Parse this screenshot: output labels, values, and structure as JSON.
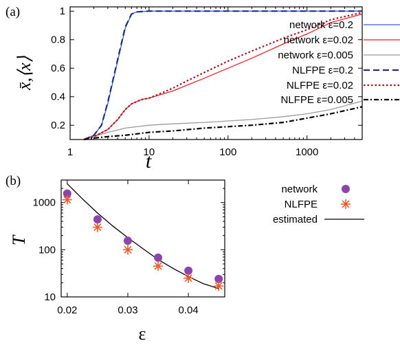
{
  "chart_data": [
    {
      "panel_label": "(a)",
      "type": "line",
      "xlabel": "t",
      "ylabel": "x̄,⟨x⟩",
      "x_scale": "log",
      "xlim": [
        1,
        5000
      ],
      "ylim": [
        0.1,
        1.03
      ],
      "x_ticks": [
        1,
        10,
        100,
        1000
      ],
      "x_tick_labels": [
        "1",
        "10",
        "100",
        "1000"
      ],
      "y_ticks": [
        0.2,
        0.4,
        0.6,
        0.8,
        1
      ],
      "y_tick_labels": [
        "0.2",
        "0.4",
        "0.6",
        "0.8",
        "1"
      ],
      "legend_position": "right",
      "series": [
        {
          "name": "network ε=0.2",
          "color": "#3a5fcd",
          "style": "solid",
          "x": [
            1.5,
            2,
            2.5,
            3,
            4,
            5,
            6,
            7,
            10,
            100,
            1000,
            5000
          ],
          "y": [
            0.1,
            0.13,
            0.2,
            0.35,
            0.65,
            0.88,
            0.98,
            0.995,
            1.0,
            1.0,
            1.0,
            1.0
          ]
        },
        {
          "name": "network ε=0.02",
          "color": "#e8212b",
          "style": "solid",
          "x": [
            1.5,
            2,
            3,
            4,
            5,
            6,
            8,
            10,
            15,
            20,
            30,
            50,
            100,
            200,
            500,
            1000,
            2000,
            5000
          ],
          "y": [
            0.1,
            0.12,
            0.17,
            0.24,
            0.31,
            0.35,
            0.38,
            0.39,
            0.42,
            0.44,
            0.48,
            0.53,
            0.6,
            0.67,
            0.77,
            0.84,
            0.92,
            0.98
          ]
        },
        {
          "name": "network ε=0.005",
          "color": "#9a9a9a",
          "style": "solid",
          "x": [
            1.5,
            2,
            3,
            5,
            10,
            20,
            50,
            100,
            200,
            500,
            1000,
            2000,
            5000
          ],
          "y": [
            0.1,
            0.12,
            0.15,
            0.18,
            0.2,
            0.21,
            0.22,
            0.23,
            0.24,
            0.26,
            0.28,
            0.31,
            0.37
          ]
        },
        {
          "name": "NLFPE ε=0.2",
          "color": "#1f2f7a",
          "style": "dashed",
          "x": [
            1.5,
            2,
            2.5,
            3,
            4,
            5,
            6,
            7,
            10,
            100,
            1000,
            5000
          ],
          "y": [
            0.1,
            0.13,
            0.2,
            0.36,
            0.66,
            0.89,
            0.98,
            0.995,
            1.0,
            1.0,
            1.0,
            1.0
          ]
        },
        {
          "name": "NLFPE ε=0.02",
          "color": "#a0141c",
          "style": "dotted",
          "x": [
            1.5,
            2,
            3,
            4,
            5,
            6,
            8,
            10,
            15,
            20,
            30,
            50,
            100,
            200,
            500,
            1000,
            2000,
            5000
          ],
          "y": [
            0.1,
            0.12,
            0.17,
            0.24,
            0.31,
            0.35,
            0.38,
            0.39,
            0.43,
            0.46,
            0.51,
            0.57,
            0.65,
            0.72,
            0.81,
            0.87,
            0.94,
            0.99
          ]
        },
        {
          "name": "NLFPE ε=0.005",
          "color": "#000000",
          "style": "dashdot",
          "x": [
            1.5,
            2,
            3,
            5,
            10,
            20,
            50,
            100,
            200,
            500,
            1000,
            2000,
            5000
          ],
          "y": [
            0.1,
            0.11,
            0.12,
            0.13,
            0.15,
            0.16,
            0.18,
            0.19,
            0.2,
            0.22,
            0.25,
            0.28,
            0.33
          ]
        }
      ]
    },
    {
      "panel_label": "(b)",
      "type": "scatter",
      "xlabel": "ε",
      "ylabel": "T",
      "y_scale": "log",
      "xlim": [
        0.019,
        0.046
      ],
      "ylim": [
        10,
        3000
      ],
      "x_ticks": [
        0.02,
        0.03,
        0.04
      ],
      "x_tick_labels": [
        "0.02",
        "0.03",
        "0.04"
      ],
      "y_ticks": [
        10,
        100,
        1000
      ],
      "y_tick_labels": [
        "10",
        "100",
        "1000"
      ],
      "legend_position": "right",
      "series": [
        {
          "name": "network",
          "color": "#8e44ad",
          "marker": "circle",
          "x": [
            0.02,
            0.025,
            0.03,
            0.035,
            0.04,
            0.045
          ],
          "y": [
            1550,
            440,
            155,
            68,
            36,
            24
          ]
        },
        {
          "name": "NLFPE",
          "color": "#f05a28",
          "marker": "asterisk",
          "x": [
            0.02,
            0.025,
            0.03,
            0.035,
            0.04,
            0.045
          ],
          "y": [
            1150,
            300,
            100,
            45,
            25,
            17
          ]
        },
        {
          "name": "estimated",
          "color": "#000000",
          "marker": "line",
          "x": [
            0.02,
            0.0225,
            0.025,
            0.0275,
            0.03,
            0.0325,
            0.035,
            0.0375,
            0.04,
            0.0425,
            0.045
          ],
          "y": [
            2500,
            1200,
            600,
            320,
            180,
            105,
            62,
            40,
            27,
            19,
            15
          ]
        }
      ]
    }
  ]
}
